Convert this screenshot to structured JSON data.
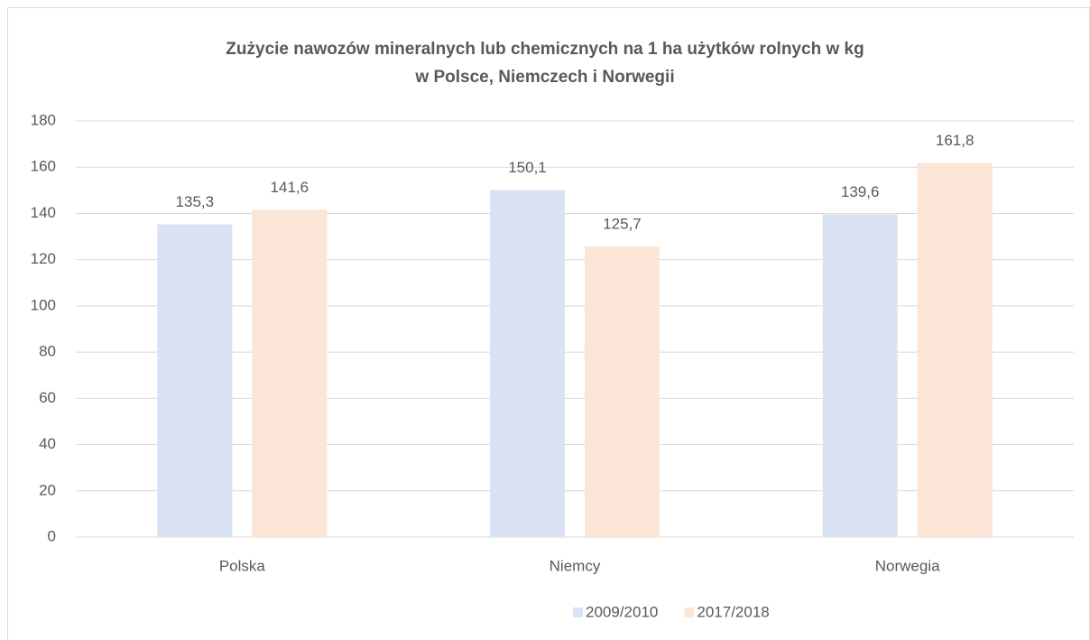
{
  "chart_data": {
    "type": "bar",
    "title": [
      "Zużycie nawozów mineralnych lub chemicznych na 1 ha użytków rolnych w kg",
      "w Polsce, Niemczech i Norwegii"
    ],
    "categories": [
      "Polska",
      "Niemcy",
      "Norwegia"
    ],
    "series": [
      {
        "name": "2009/2010",
        "color": "#dae3f3",
        "values": [
          135.3,
          150.1,
          139.6
        ],
        "value_labels": [
          "135,3",
          "150,1",
          "139,6"
        ]
      },
      {
        "name": "2017/2018",
        "color": "#fbe5d6",
        "values": [
          141.6,
          125.7,
          161.8
        ],
        "value_labels": [
          "141,6",
          "125,7",
          "161,8"
        ]
      }
    ],
    "ylim": [
      0,
      180
    ],
    "yticks": [
      0,
      20,
      40,
      60,
      80,
      100,
      120,
      140,
      160,
      180
    ],
    "grid": true,
    "legend": "bottom"
  }
}
